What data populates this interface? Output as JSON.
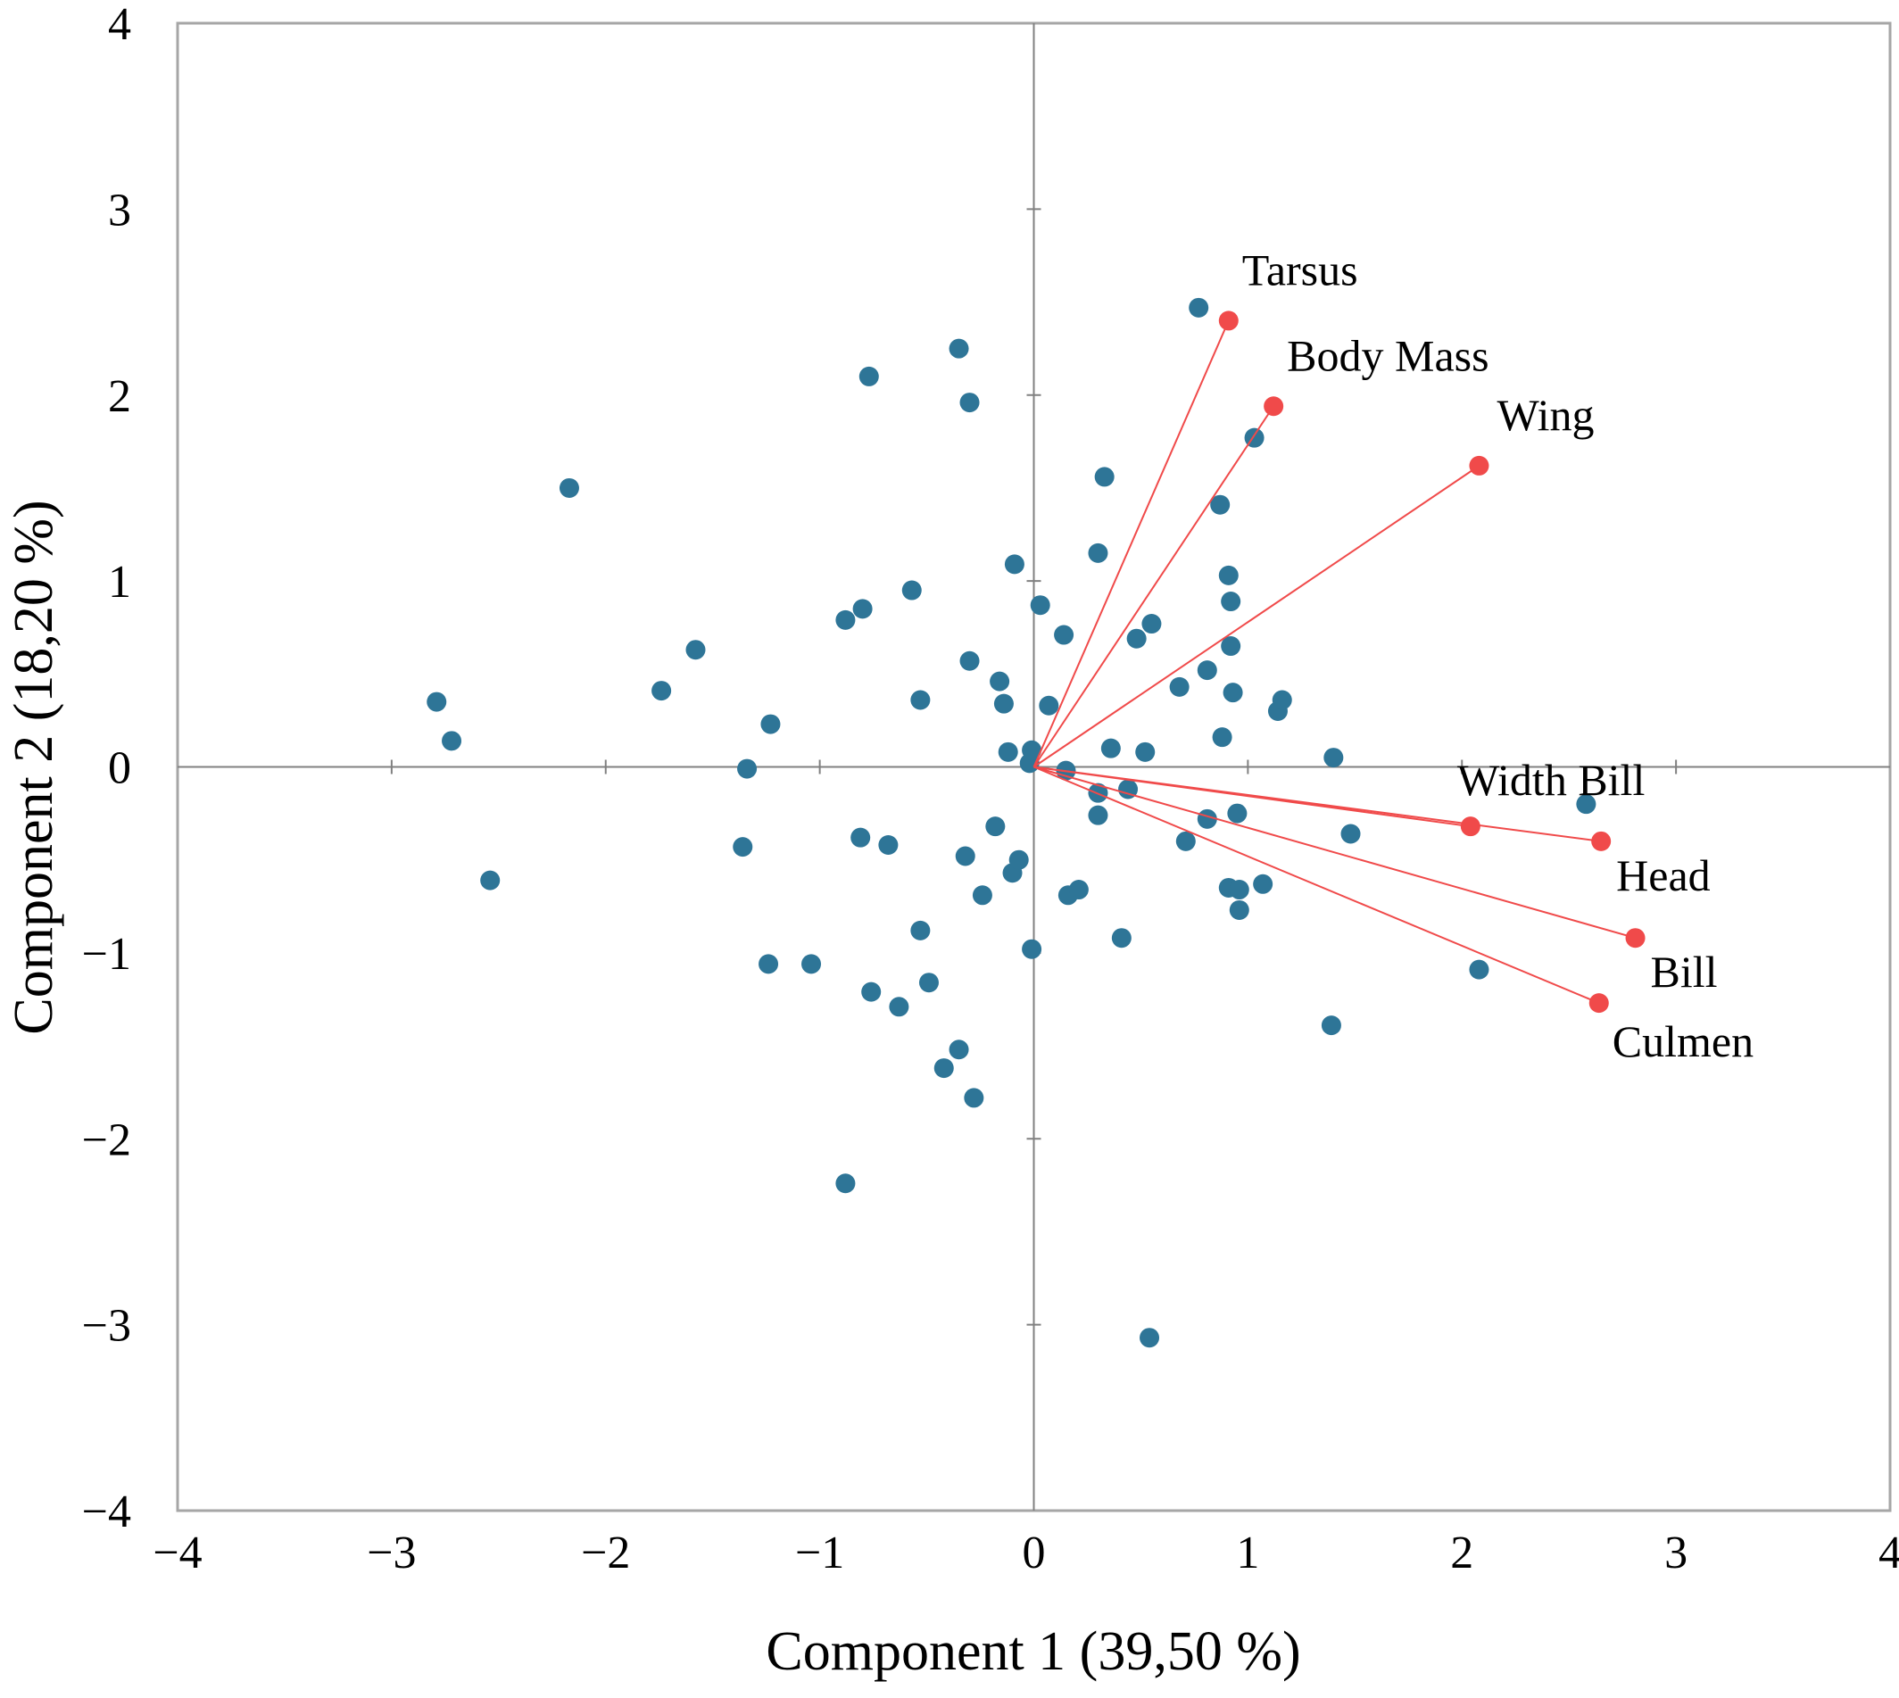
{
  "chart_data": {
    "type": "scatter",
    "xlabel": "Component 1 (39,50 %)",
    "ylabel": "Component 2 (18,20 %)",
    "xlim": [
      -4,
      4
    ],
    "ylim": [
      -4,
      4
    ],
    "x_ticks": [
      "−4",
      "−3",
      "−2",
      "−1",
      "0",
      "1",
      "2",
      "3",
      "4"
    ],
    "y_ticks": [
      "−4",
      "−3",
      "−2",
      "−1",
      "0",
      "1",
      "2",
      "3",
      "4"
    ],
    "grid": false,
    "colors": {
      "points": "#2e7597",
      "vectors": "#f04a4a",
      "axes": "#808080"
    },
    "points": [
      [
        -2.79,
        0.35
      ],
      [
        -2.72,
        0.14
      ],
      [
        -2.54,
        -0.61
      ],
      [
        -2.17,
        1.5
      ],
      [
        -1.74,
        0.41
      ],
      [
        -1.58,
        0.63
      ],
      [
        -1.34,
        -0.01
      ],
      [
        -1.36,
        -0.43
      ],
      [
        -1.23,
        0.23
      ],
      [
        -1.24,
        -1.06
      ],
      [
        -1.04,
        -1.06
      ],
      [
        -0.88,
        0.79
      ],
      [
        -0.8,
        0.85
      ],
      [
        -0.81,
        -0.38
      ],
      [
        -0.77,
        2.1
      ],
      [
        -0.76,
        -1.21
      ],
      [
        -0.68,
        -0.42
      ],
      [
        -0.63,
        -1.29
      ],
      [
        -0.57,
        0.95
      ],
      [
        -0.53,
        0.36
      ],
      [
        -0.53,
        -0.88
      ],
      [
        -0.49,
        -1.16
      ],
      [
        -0.35,
        2.25
      ],
      [
        -0.3,
        1.96
      ],
      [
        -0.3,
        0.57
      ],
      [
        -0.32,
        -0.48
      ],
      [
        -0.35,
        -1.52
      ],
      [
        -0.42,
        -1.62
      ],
      [
        -0.28,
        -1.78
      ],
      [
        -0.24,
        -0.69
      ],
      [
        -0.18,
        -0.32
      ],
      [
        -0.16,
        0.46
      ],
      [
        -0.14,
        0.34
      ],
      [
        -0.12,
        0.08
      ],
      [
        -0.09,
        1.09
      ],
      [
        -0.1,
        -0.57
      ],
      [
        -0.07,
        -0.5
      ],
      [
        0.07,
        0.33
      ],
      [
        -0.02,
        0.02
      ],
      [
        -0.01,
        0.09
      ],
      [
        0.03,
        0.87
      ],
      [
        0.14,
        0.71
      ],
      [
        0.15,
        -0.02
      ],
      [
        0.16,
        -0.69
      ],
      [
        0.21,
        -0.66
      ],
      [
        -0.01,
        -0.98
      ],
      [
        -0.88,
        -2.24
      ],
      [
        0.3,
        1.15
      ],
      [
        0.33,
        1.56
      ],
      [
        0.3,
        -0.14
      ],
      [
        0.3,
        -0.26
      ],
      [
        0.36,
        0.1
      ],
      [
        0.41,
        -0.92
      ],
      [
        0.44,
        -0.12
      ],
      [
        0.48,
        0.69
      ],
      [
        0.52,
        0.08
      ],
      [
        0.55,
        0.77
      ],
      [
        0.68,
        0.43
      ],
      [
        0.71,
        -0.4
      ],
      [
        0.77,
        2.47
      ],
      [
        0.81,
        0.52
      ],
      [
        0.81,
        -0.28
      ],
      [
        0.87,
        1.41
      ],
      [
        0.88,
        0.16
      ],
      [
        0.91,
        1.03
      ],
      [
        0.92,
        0.89
      ],
      [
        0.92,
        0.65
      ],
      [
        0.93,
        0.4
      ],
      [
        0.91,
        -0.65
      ],
      [
        0.95,
        -0.25
      ],
      [
        0.96,
        -0.66
      ],
      [
        0.96,
        -0.77
      ],
      [
        1.03,
        1.77
      ],
      [
        1.07,
        -0.63
      ],
      [
        1.14,
        0.3
      ],
      [
        1.16,
        0.36
      ],
      [
        1.4,
        0.05
      ],
      [
        1.48,
        -0.36
      ],
      [
        1.39,
        -1.39
      ],
      [
        2.08,
        -1.09
      ],
      [
        2.58,
        -0.2
      ],
      [
        0.54,
        -3.07
      ]
    ],
    "vectors": [
      {
        "name": "Tarsus",
        "x": 0.91,
        "y": 2.4
      },
      {
        "name": "Body Mass",
        "x": 1.12,
        "y": 1.94
      },
      {
        "name": "Wing",
        "x": 2.08,
        "y": 1.62
      },
      {
        "name": "Width Bill",
        "x": 2.04,
        "y": -0.32
      },
      {
        "name": "Head",
        "x": 2.65,
        "y": -0.4
      },
      {
        "name": "Bill",
        "x": 2.81,
        "y": -0.92
      },
      {
        "name": "Culmen",
        "x": 2.64,
        "y": -1.27
      }
    ]
  }
}
